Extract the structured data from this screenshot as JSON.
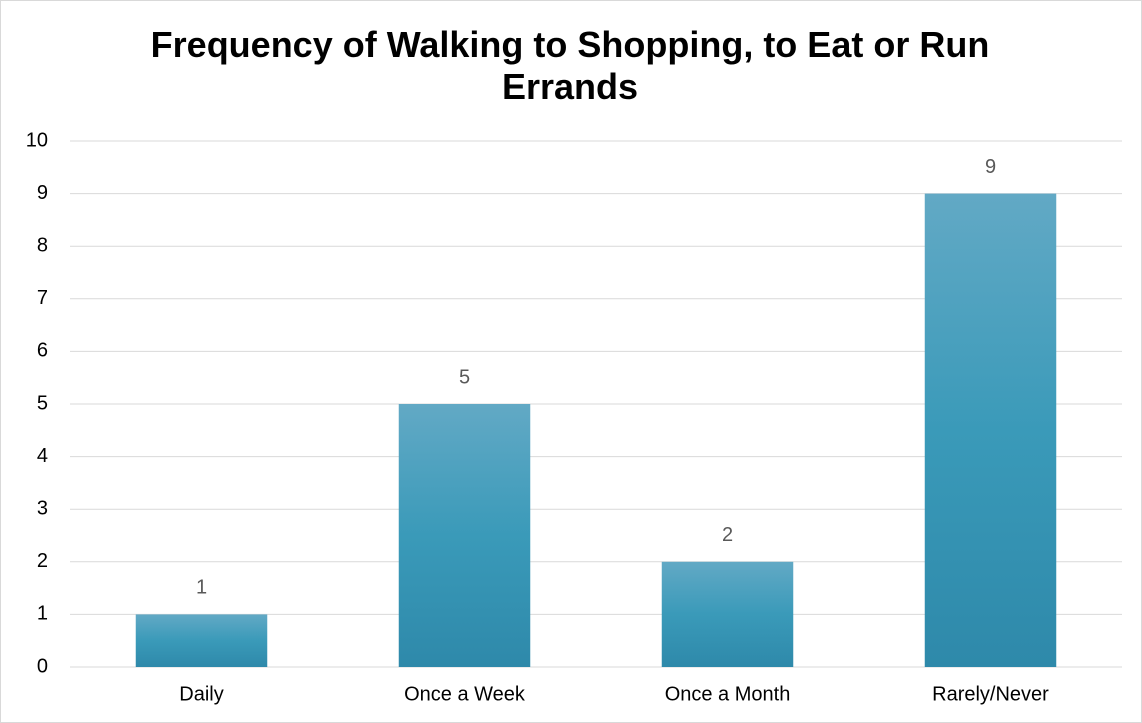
{
  "chart_data": {
    "type": "bar",
    "title": "Frequency of Walking to Shopping, to Eat or Run Errands",
    "categories": [
      "Daily",
      "Once a Week",
      "Once a Month",
      "Rarely/Never"
    ],
    "values": [
      1,
      5,
      2,
      9
    ],
    "color": "#3a9ab9",
    "ylim": [
      0,
      10
    ],
    "yticks": [
      0,
      1,
      2,
      3,
      4,
      5,
      6,
      7,
      8,
      9,
      10
    ],
    "grid": true
  }
}
